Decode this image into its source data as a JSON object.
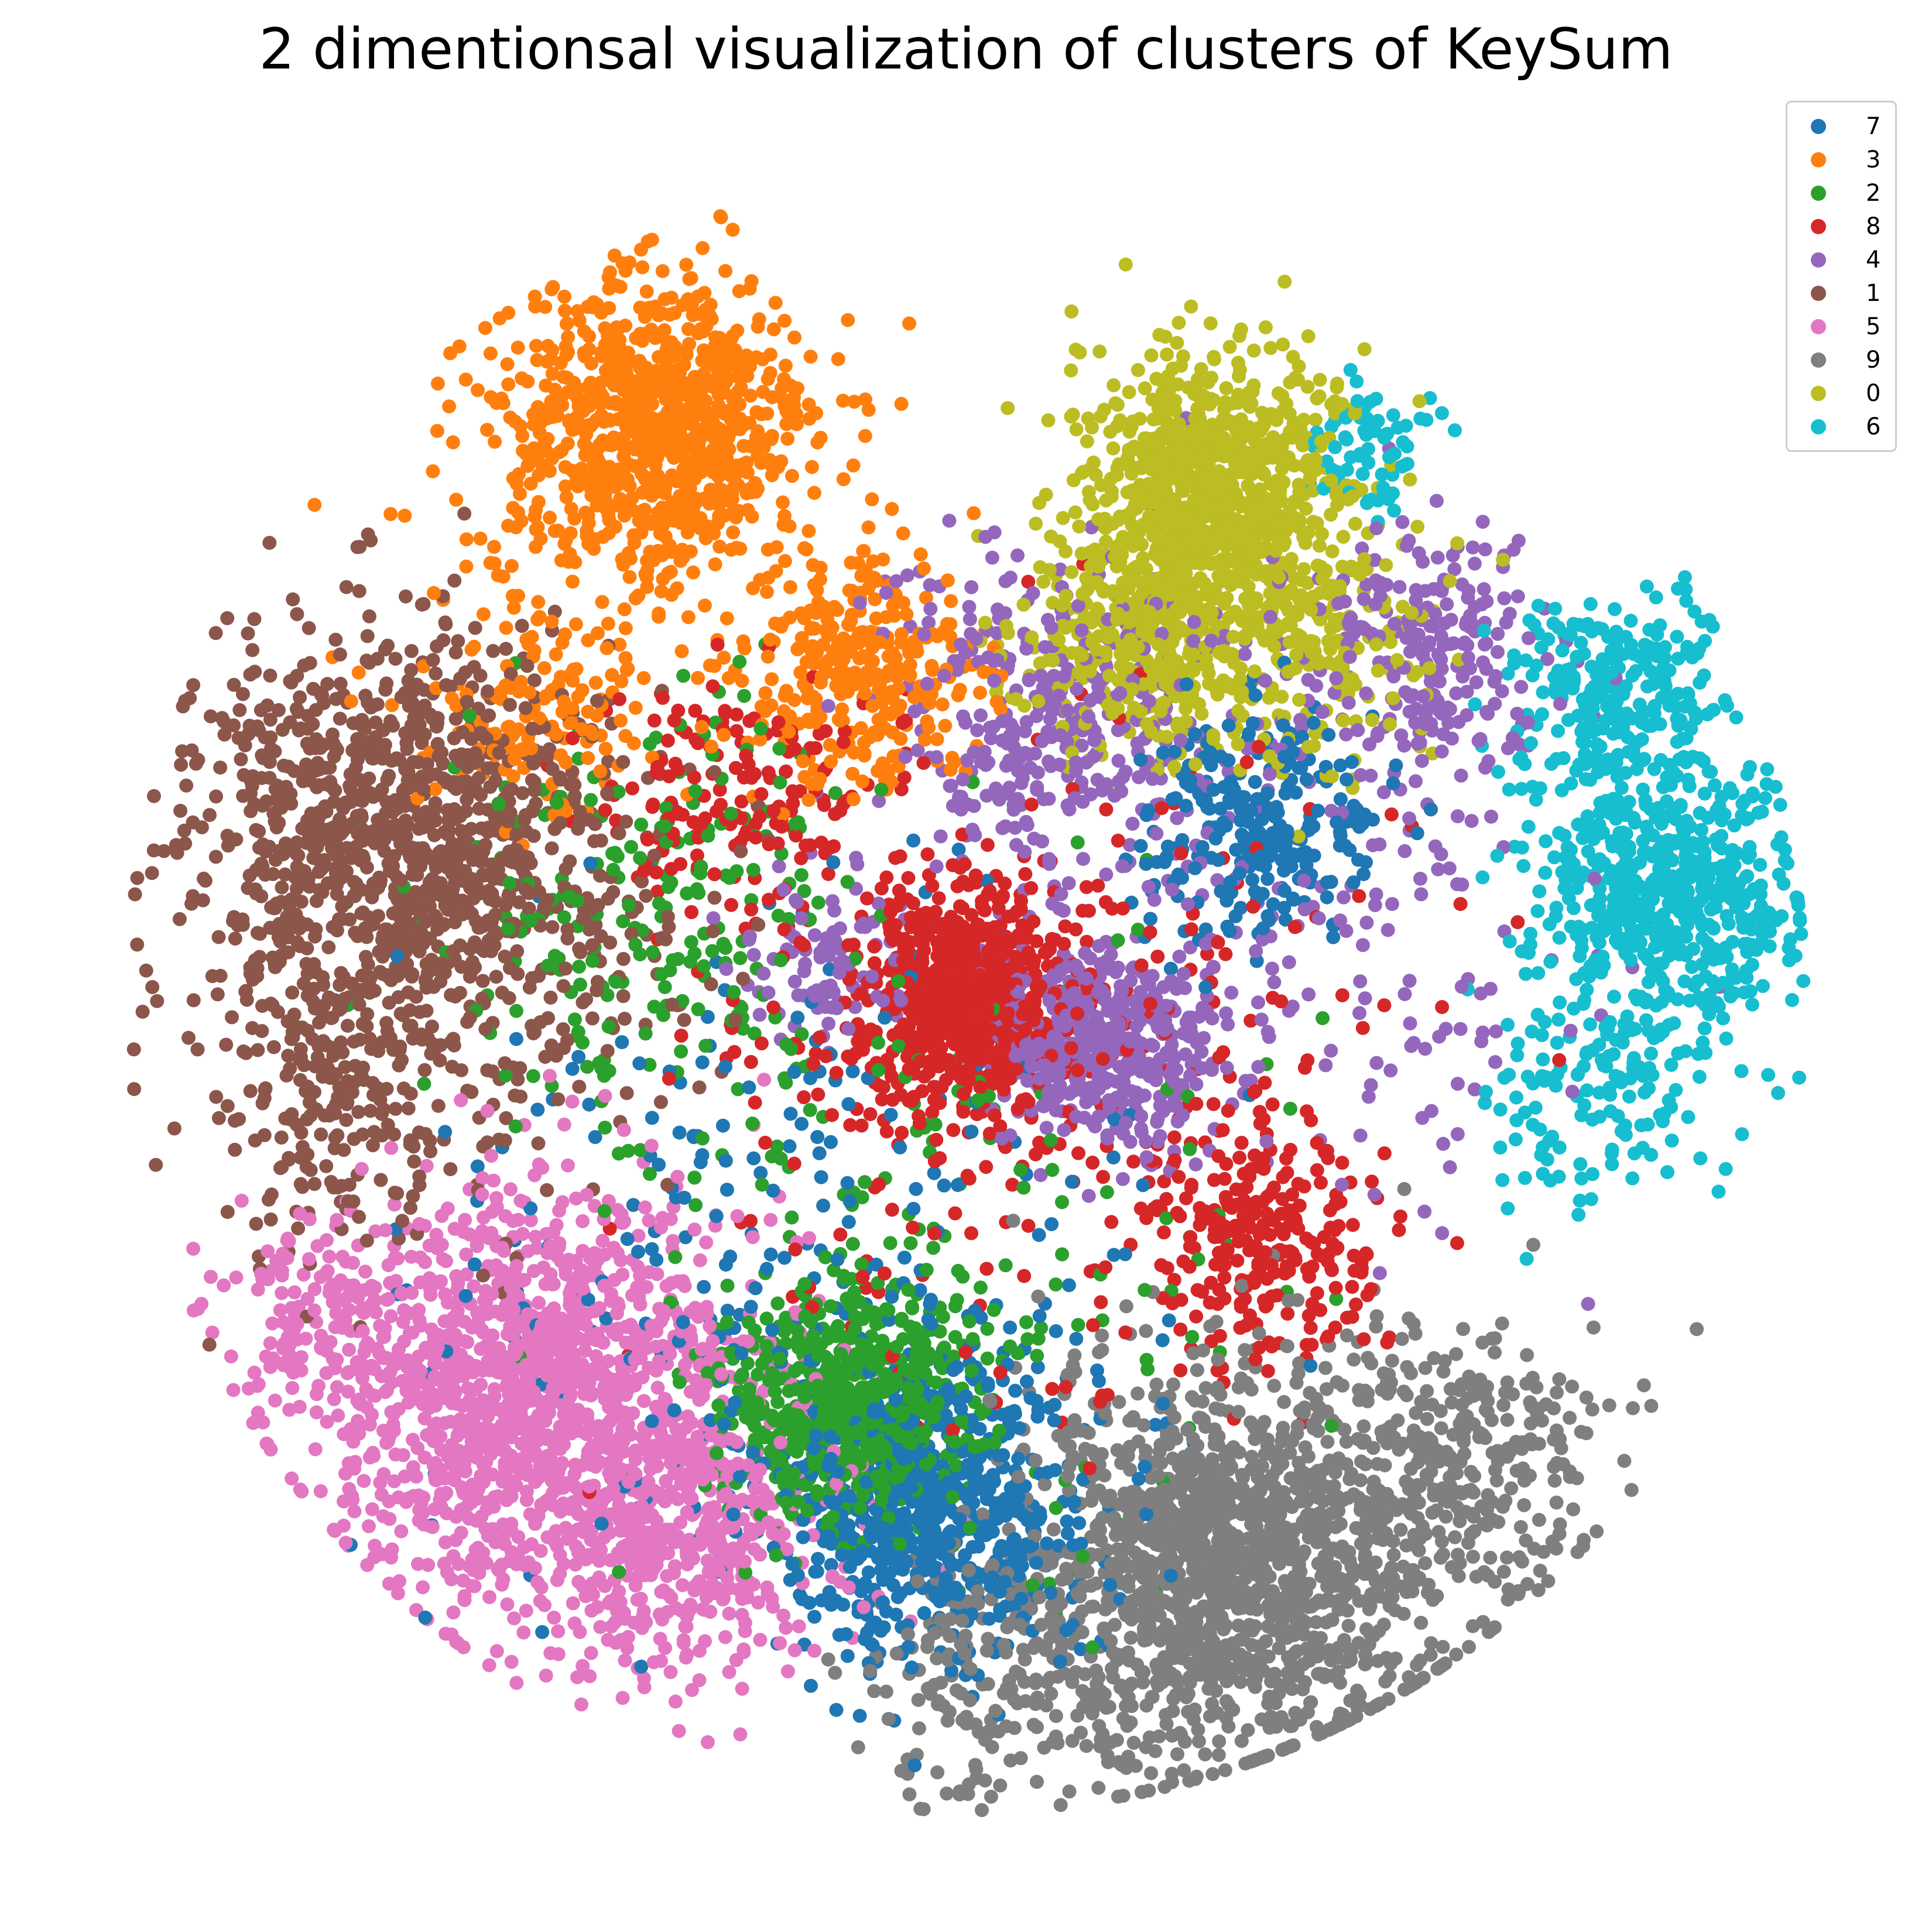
{
  "chart_data": {
    "type": "scatter",
    "title": "2 dimentionsal visualization of clusters of KeySum",
    "xlabel": "",
    "ylabel": "",
    "axes_visible": false,
    "grid": false,
    "legend_placement": "top-right",
    "xlim": [
      0,
      100
    ],
    "ylim": [
      0,
      100
    ],
    "series": [
      {
        "name": "7",
        "color": "#1f77b4",
        "centers": [
          {
            "x": 48,
            "y": 20,
            "spread": 5.5,
            "n": 700
          },
          {
            "x": 67,
            "y": 60,
            "spread": 4.0,
            "n": 260
          },
          {
            "x": 40,
            "y": 35,
            "spread": 12.0,
            "n": 260
          }
        ],
        "sample_points": [
          {
            "x": 48.0,
            "y": 20.0
          },
          {
            "x": 68.0,
            "y": 60.0
          }
        ]
      },
      {
        "name": "3",
        "color": "#ff7f0e",
        "centers": [
          {
            "x": 32,
            "y": 83,
            "spread": 5.5,
            "n": 900
          },
          {
            "x": 44,
            "y": 69,
            "spread": 4.0,
            "n": 320
          },
          {
            "x": 26,
            "y": 67,
            "spread": 4.0,
            "n": 160
          }
        ],
        "sample_points": [
          {
            "x": 32.0,
            "y": 84.0
          },
          {
            "x": 45.0,
            "y": 68.0
          }
        ]
      },
      {
        "name": "2",
        "color": "#2ca02c",
        "centers": [
          {
            "x": 43,
            "y": 26,
            "spread": 4.0,
            "n": 650
          },
          {
            "x": 32,
            "y": 55,
            "spread": 7.0,
            "n": 200
          },
          {
            "x": 48,
            "y": 36,
            "spread": 12.0,
            "n": 200
          }
        ],
        "sample_points": [
          {
            "x": 43.0,
            "y": 26.0
          },
          {
            "x": 34.0,
            "y": 56.0
          }
        ]
      },
      {
        "name": "8",
        "color": "#d62728",
        "centers": [
          {
            "x": 50,
            "y": 50,
            "spread": 3.5,
            "n": 650
          },
          {
            "x": 67,
            "y": 36,
            "spread": 4.0,
            "n": 240
          },
          {
            "x": 37,
            "y": 61,
            "spread": 4.5,
            "n": 170
          },
          {
            "x": 55,
            "y": 45,
            "spread": 12.0,
            "n": 320
          }
        ],
        "sample_points": [
          {
            "x": 51.0,
            "y": 50.0
          },
          {
            "x": 68.0,
            "y": 35.0
          }
        ]
      },
      {
        "name": "4",
        "color": "#9467bd",
        "centers": [
          {
            "x": 58,
            "y": 47,
            "spread": 3.5,
            "n": 420
          },
          {
            "x": 55,
            "y": 66,
            "spread": 6.0,
            "n": 360
          },
          {
            "x": 76,
            "y": 70,
            "spread": 4.5,
            "n": 220
          },
          {
            "x": 72,
            "y": 53,
            "spread": 9.0,
            "n": 160
          },
          {
            "x": 42,
            "y": 52,
            "spread": 3.0,
            "n": 90
          }
        ],
        "sample_points": [
          {
            "x": 58.0,
            "y": 46.0
          },
          {
            "x": 56.0,
            "y": 66.0
          }
        ]
      },
      {
        "name": "1",
        "color": "#8c564b",
        "centers": [
          {
            "x": 17,
            "y": 59,
            "spread": 7.0,
            "n": 1100
          },
          {
            "x": 14,
            "y": 43,
            "spread": 5.0,
            "n": 200
          },
          {
            "x": 27,
            "y": 52,
            "spread": 8.0,
            "n": 120
          }
        ],
        "sample_points": [
          {
            "x": 18.0,
            "y": 60.0
          },
          {
            "x": 14.0,
            "y": 44.0
          }
        ]
      },
      {
        "name": "5",
        "color": "#e377c2",
        "centers": [
          {
            "x": 25,
            "y": 26,
            "spread": 7.5,
            "n": 1400
          },
          {
            "x": 34,
            "y": 18,
            "spread": 5.0,
            "n": 350
          },
          {
            "x": 13,
            "y": 31,
            "spread": 3.5,
            "n": 120
          }
        ],
        "sample_points": [
          {
            "x": 24.0,
            "y": 27.0
          },
          {
            "x": 34.0,
            "y": 17.0
          }
        ]
      },
      {
        "name": "9",
        "color": "#7f7f7f",
        "centers": [
          {
            "x": 65,
            "y": 16,
            "spread": 7.0,
            "n": 1400
          },
          {
            "x": 78,
            "y": 22,
            "spread": 5.0,
            "n": 320
          },
          {
            "x": 52,
            "y": 10,
            "spread": 5.0,
            "n": 200
          }
        ],
        "sample_points": [
          {
            "x": 65.0,
            "y": 16.0
          },
          {
            "x": 78.0,
            "y": 22.0
          }
        ]
      },
      {
        "name": "0",
        "color": "#bcbd22",
        "centers": [
          {
            "x": 64,
            "y": 80,
            "spread": 4.5,
            "n": 800
          },
          {
            "x": 60,
            "y": 71,
            "spread": 4.0,
            "n": 380
          },
          {
            "x": 70,
            "y": 70,
            "spread": 4.0,
            "n": 200
          }
        ],
        "sample_points": [
          {
            "x": 64.0,
            "y": 81.0
          },
          {
            "x": 58.0,
            "y": 70.0
          }
        ]
      },
      {
        "name": "6",
        "color": "#17becf",
        "centers": [
          {
            "x": 90,
            "y": 56,
            "spread": 4.5,
            "n": 600
          },
          {
            "x": 87,
            "y": 68,
            "spread": 3.5,
            "n": 240
          },
          {
            "x": 73,
            "y": 82,
            "spread": 2.5,
            "n": 70
          },
          {
            "x": 86,
            "y": 44,
            "spread": 4.0,
            "n": 140
          }
        ],
        "sample_points": [
          {
            "x": 91.0,
            "y": 55.0
          },
          {
            "x": 87.0,
            "y": 69.0
          }
        ]
      }
    ]
  }
}
